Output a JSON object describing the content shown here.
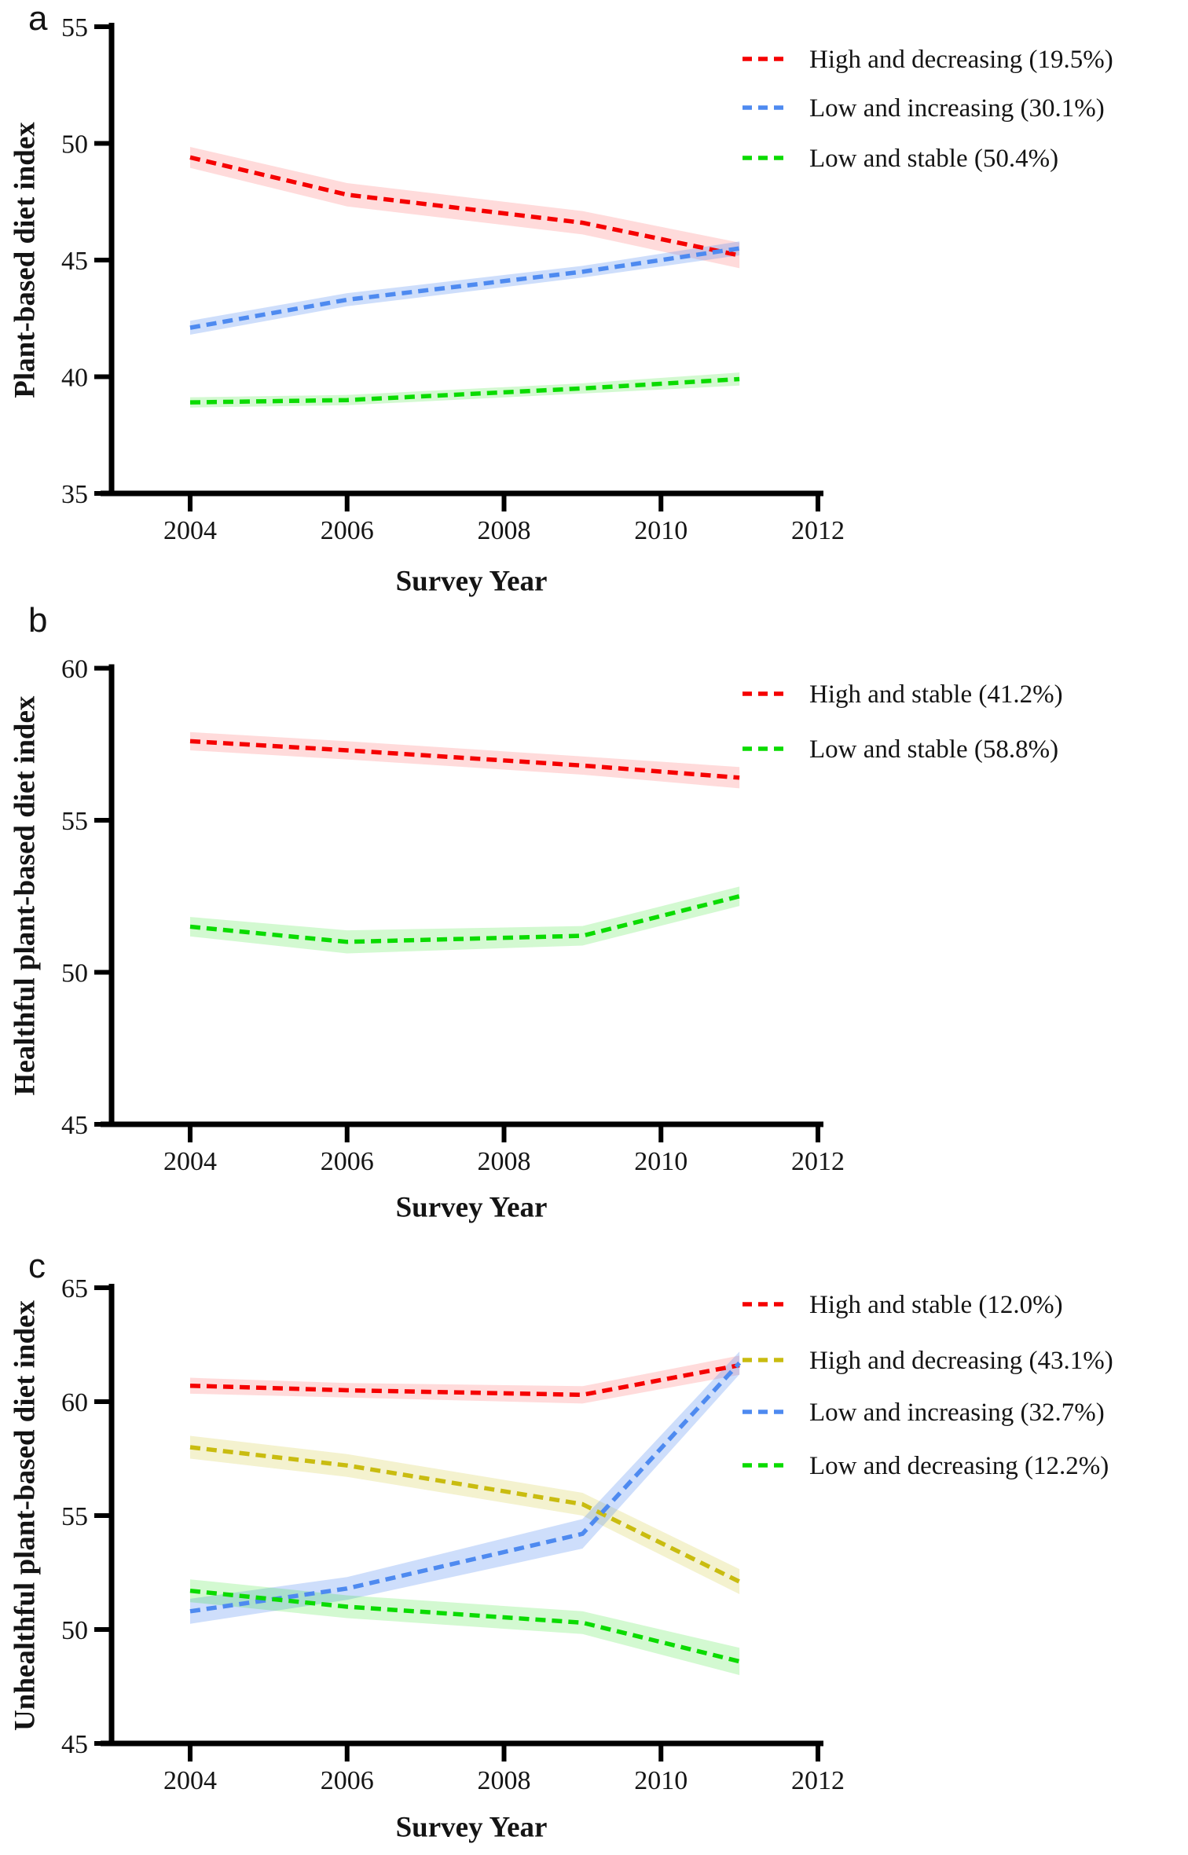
{
  "figure": {
    "background": "#ffffff",
    "text_color": "#141414",
    "x_axis_title": "Survey Year"
  },
  "panels": [
    {
      "letter": "a",
      "ylabel": "Plant-based diet index",
      "xlabel": "Survey Year"
    },
    {
      "letter": "b",
      "ylabel": "Healthful plant-based diet index",
      "xlabel": "Survey Year"
    },
    {
      "letter": "c",
      "ylabel": "Unhealthful plant-based diet index",
      "xlabel": "Survey Year"
    }
  ],
  "chart_data": [
    {
      "type": "line",
      "panel": "a",
      "ylabel": "Plant-based diet index",
      "xlabel": "Survey Year",
      "x": [
        2004,
        2006,
        2009,
        2011
      ],
      "xticks": [
        2004,
        2006,
        2008,
        2010,
        2012
      ],
      "yticks": [
        35,
        40,
        45,
        50,
        55
      ],
      "ylim": [
        35,
        55
      ],
      "xlim": [
        2003,
        2012
      ],
      "grid": false,
      "legend_position": "top-right",
      "line_style": "dashed",
      "bands": "95% CI shaded around each line",
      "series": [
        {
          "name": "High and decreasing (19.5%)",
          "color": "#F50000",
          "band_color": "rgba(255,0,0,0.14)",
          "values": [
            49.4,
            47.8,
            46.6,
            45.2
          ],
          "band_halfwidth": [
            0.45,
            0.5,
            0.5,
            0.55
          ]
        },
        {
          "name": "Low and increasing (30.1%)",
          "color": "#4E8AF0",
          "band_color": "rgba(78,138,240,0.28)",
          "values": [
            42.1,
            43.3,
            44.5,
            45.5
          ],
          "band_halfwidth": [
            0.3,
            0.28,
            0.25,
            0.3
          ]
        },
        {
          "name": "Low and stable (50.4%)",
          "color": "#0ADB00",
          "band_color": "rgba(10,219,0,0.18)",
          "values": [
            38.9,
            39.0,
            39.5,
            39.9
          ],
          "band_halfwidth": [
            0.22,
            0.22,
            0.22,
            0.28
          ]
        }
      ]
    },
    {
      "type": "line",
      "panel": "b",
      "ylabel": "Healthful plant-based diet index",
      "xlabel": "Survey Year",
      "x": [
        2004,
        2006,
        2009,
        2011
      ],
      "xticks": [
        2004,
        2006,
        2008,
        2010,
        2012
      ],
      "yticks": [
        45,
        50,
        55,
        60
      ],
      "ylim": [
        45,
        60
      ],
      "xlim": [
        2003,
        2012
      ],
      "grid": false,
      "legend_position": "top-right",
      "line_style": "dashed",
      "bands": "95% CI shaded around each line",
      "series": [
        {
          "name": "High and stable (41.2%)",
          "color": "#F50000",
          "band_color": "rgba(255,0,0,0.14)",
          "values": [
            57.6,
            57.3,
            56.8,
            56.4
          ],
          "band_halfwidth": [
            0.3,
            0.3,
            0.3,
            0.35
          ]
        },
        {
          "name": "Low and stable (58.8%)",
          "color": "#0ADB00",
          "band_color": "rgba(10,219,0,0.18)",
          "values": [
            51.5,
            51.0,
            51.2,
            52.5
          ],
          "band_halfwidth": [
            0.32,
            0.38,
            0.32,
            0.32
          ]
        }
      ]
    },
    {
      "type": "line",
      "panel": "c",
      "ylabel": "Unhealthful plant-based diet index",
      "xlabel": "Survey Year",
      "x": [
        2004,
        2006,
        2009,
        2011
      ],
      "xticks": [
        2004,
        2006,
        2008,
        2010,
        2012
      ],
      "yticks": [
        45,
        50,
        55,
        60,
        65
      ],
      "ylim": [
        45,
        65
      ],
      "xlim": [
        2003,
        2012
      ],
      "grid": false,
      "legend_position": "top-right",
      "line_style": "dashed",
      "bands": "95% CI shaded around each line",
      "series": [
        {
          "name": "High and stable (12.0%)",
          "color": "#F50000",
          "band_color": "rgba(255,0,0,0.14)",
          "values": [
            60.7,
            60.5,
            60.3,
            61.6
          ],
          "band_halfwidth": [
            0.35,
            0.32,
            0.38,
            0.42
          ]
        },
        {
          "name": "High and decreasing (43.1%)",
          "color": "#C9BC10",
          "band_color": "rgba(201,188,16,0.2)",
          "values": [
            58.0,
            57.2,
            55.5,
            52.1
          ],
          "band_halfwidth": [
            0.5,
            0.5,
            0.5,
            0.55
          ]
        },
        {
          "name": "Low and increasing (32.7%)",
          "color": "#4E8AF0",
          "band_color": "rgba(78,138,240,0.28)",
          "values": [
            50.8,
            51.8,
            54.2,
            61.7
          ],
          "band_halfwidth": [
            0.55,
            0.5,
            0.65,
            0.5
          ]
        },
        {
          "name": "Low and decreasing (12.2%)",
          "color": "#0ADB00",
          "band_color": "rgba(10,219,0,0.18)",
          "values": [
            51.7,
            51.0,
            50.3,
            48.6
          ],
          "band_halfwidth": [
            0.5,
            0.5,
            0.5,
            0.6
          ]
        }
      ]
    }
  ]
}
